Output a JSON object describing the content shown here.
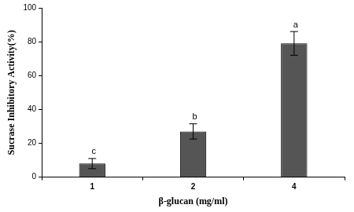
{
  "chart_data": {
    "type": "bar",
    "categories": [
      "1",
      "2",
      "4"
    ],
    "values": [
      8,
      27,
      79
    ],
    "errors": [
      3,
      4.5,
      7
    ],
    "annotations": [
      "c",
      "b",
      "a"
    ],
    "color": "#555555",
    "x_label": "β-glucan (mg/ml)",
    "y_label": "Sucrase Inhibitory Activity(%)",
    "ylim": [
      0,
      100
    ],
    "yticks": [
      0,
      20,
      40,
      60,
      80,
      100
    ],
    "grid": false
  }
}
